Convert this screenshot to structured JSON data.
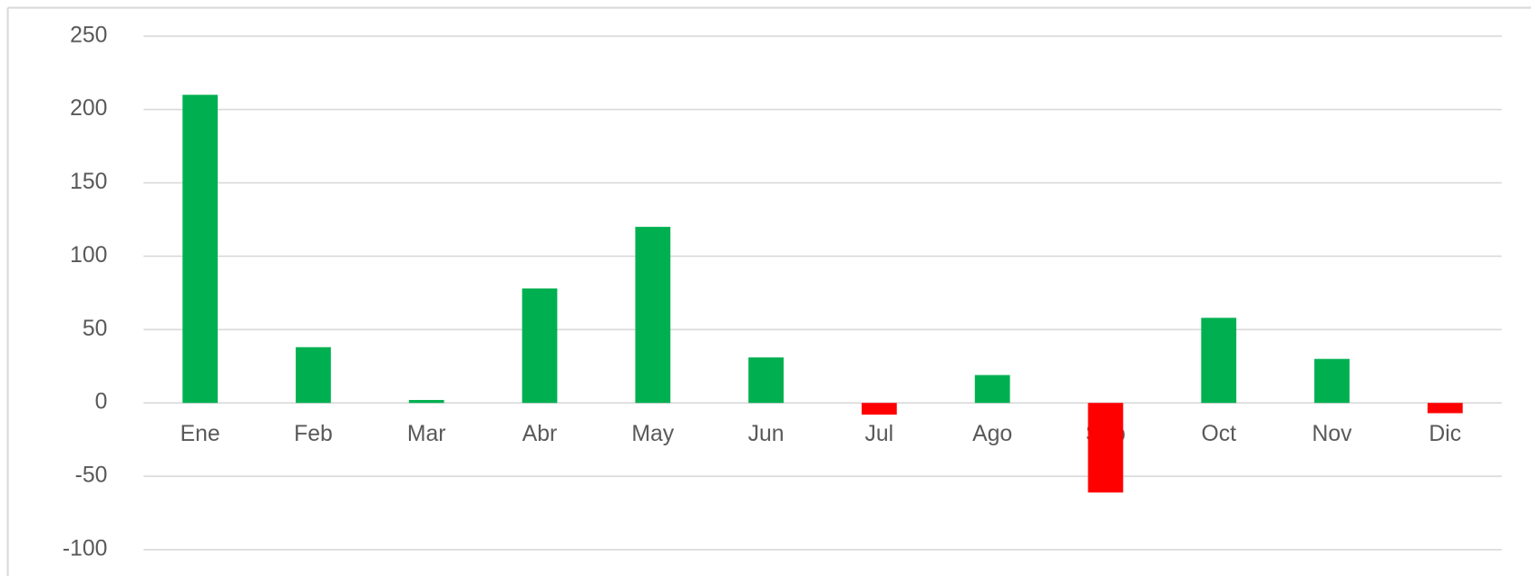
{
  "chart_data": {
    "type": "bar",
    "categories": [
      "Ene",
      "Feb",
      "Mar",
      "Abr",
      "May",
      "Jun",
      "Jul",
      "Ago",
      "Sep",
      "Oct",
      "Nov",
      "Dic"
    ],
    "values": [
      210,
      38,
      2,
      78,
      120,
      31,
      -8,
      19,
      -61,
      58,
      30,
      -7
    ],
    "color": "#00b050",
    "negative_color": "#ff0000",
    "ylim": [
      -100,
      250
    ],
    "yticks": [
      -100,
      -50,
      0,
      50,
      100,
      150,
      200,
      250
    ],
    "grid": true
  }
}
